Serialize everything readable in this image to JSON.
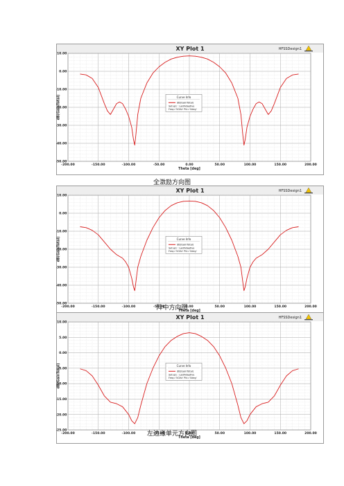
{
  "colors": {
    "curve": "#d81b1b",
    "plot_bg": "#ffffff",
    "frame": "#7f7f7f",
    "grid": "#c9c9c9",
    "header_bg": "#eeeeee"
  },
  "chart_data": [
    {
      "type": "line",
      "title": "XY Plot 1",
      "design_label": "HFSSDesign1",
      "xlabel": "Theta [deg]",
      "ylabel": "dB(GainTotal)",
      "xlim": [
        -200,
        200
      ],
      "ylim": [
        -50,
        10
      ],
      "x_ticks": [
        "-200.00",
        "-150.00",
        "-100.00",
        "-50.00",
        "0.00",
        "50.00",
        "100.00",
        "150.00",
        "200.00"
      ],
      "y_ticks": [
        "10.00",
        "0.00",
        "-10.00",
        "-20.00",
        "-30.00",
        "-40.00",
        "-50.00"
      ],
      "legend": {
        "title": "Curve Info",
        "entry": "dB(GainTotal)",
        "lines": [
          "Setup1 : LastAdaptive",
          "Freq='5GHz' Phi='0deg'"
        ]
      },
      "caption": "全激励方向图",
      "series": [
        {
          "x": [
            -180,
            -170,
            -160,
            -150,
            -140,
            -135,
            -130,
            -125,
            -120,
            -115,
            -110,
            -105,
            -100,
            -95,
            -92,
            -90,
            -88,
            -85,
            -80,
            -70,
            -60,
            -50,
            -40,
            -30,
            -20,
            -10,
            0,
            10,
            20,
            30,
            40,
            50,
            60,
            70,
            80,
            85,
            88,
            90,
            92,
            95,
            100,
            105,
            110,
            115,
            120,
            125,
            130,
            135,
            140,
            150,
            160,
            170,
            180
          ],
          "y": [
            -1.5,
            -2,
            -4,
            -9,
            -18,
            -22,
            -24,
            -21,
            -18,
            -17,
            -18,
            -21,
            -25,
            -31,
            -38,
            -41,
            -35,
            -24,
            -15,
            -6.5,
            -1,
            2.5,
            5,
            6.8,
            7.8,
            8.4,
            8.6,
            8.4,
            7.8,
            6.8,
            5,
            2.5,
            -1,
            -6.5,
            -15,
            -24,
            -35,
            -41,
            -38,
            -31,
            -25,
            -21,
            -18,
            -17,
            -18,
            -21,
            -24,
            -22,
            -18,
            -9,
            -4,
            -2,
            -1.5
          ]
        }
      ]
    },
    {
      "type": "line",
      "title": "XY Plot 1",
      "design_label": "HFSSDesign1",
      "xlabel": "Theta [deg]",
      "ylabel": "dB(GainTotal)",
      "xlim": [
        -200,
        200
      ],
      "ylim": [
        -50,
        10
      ],
      "x_ticks": [
        "-200.00",
        "-150.00",
        "-100.00",
        "-50.00",
        "0.00",
        "50.00",
        "100.00",
        "150.00",
        "200.00"
      ],
      "y_ticks": [
        "10.00",
        "0.00",
        "-10.00",
        "-20.00",
        "-30.00",
        "-40.00",
        "-50.00"
      ],
      "legend": {
        "title": "Curve Info",
        "entry": "dB(GainTotal)",
        "lines": [
          "Setup1 : LastAdaptive",
          "Freq='5GHz' Phi='0deg'"
        ]
      },
      "caption": "阵中方向图",
      "series": [
        {
          "x": [
            -180,
            -170,
            -160,
            -150,
            -140,
            -130,
            -120,
            -110,
            -105,
            -100,
            -95,
            -92,
            -90,
            -88,
            -85,
            -80,
            -70,
            -60,
            -50,
            -40,
            -30,
            -20,
            -10,
            0,
            10,
            20,
            30,
            40,
            50,
            60,
            70,
            80,
            85,
            88,
            90,
            92,
            95,
            100,
            105,
            110,
            120,
            130,
            140,
            150,
            160,
            170,
            180
          ],
          "y": [
            -7.5,
            -8,
            -9.5,
            -12,
            -16,
            -20,
            -23,
            -25,
            -27,
            -30,
            -36,
            -41,
            -43,
            -38,
            -30,
            -24,
            -15,
            -8,
            -2.5,
            1.5,
            4.2,
            5.8,
            6.6,
            6.8,
            6.6,
            5.8,
            4.2,
            1.5,
            -2.5,
            -8,
            -15,
            -24,
            -30,
            -38,
            -43,
            -41,
            -36,
            -30,
            -27,
            -25,
            -23,
            -20,
            -16,
            -12,
            -9.5,
            -8,
            -7.5
          ]
        }
      ]
    },
    {
      "type": "line",
      "title": "XY Plot 1",
      "design_label": "HFSSDesign1",
      "xlabel": "Theta [deg]",
      "ylabel": "dB(GainTotal)",
      "xlim": [
        -200,
        200
      ],
      "ylim": [
        -25,
        10
      ],
      "x_ticks": [
        "-200.00",
        "-150.00",
        "-100.00",
        "-50.00",
        "0.00",
        "50.00",
        "100.00",
        "150.00",
        "200.00"
      ],
      "y_ticks": [
        "10.00",
        "5.00",
        "0.00",
        "-5.00",
        "-10.00",
        "-15.00",
        "-20.00",
        "-25.00"
      ],
      "legend": {
        "title": "Curve Info",
        "entry": "dB(GainTotal)",
        "lines": [
          "Setup1 : LastAdaptive",
          "Freq='5GHz' Phi='0deg'"
        ]
      },
      "caption": "左边缘单元方向图",
      "series": [
        {
          "x": [
            -180,
            -170,
            -160,
            -150,
            -140,
            -130,
            -120,
            -110,
            -100,
            -95,
            -90,
            -85,
            -80,
            -70,
            -60,
            -50,
            -40,
            -30,
            -20,
            -10,
            0,
            10,
            20,
            30,
            40,
            50,
            60,
            70,
            80,
            85,
            90,
            95,
            100,
            110,
            120,
            130,
            140,
            150,
            160,
            170,
            180
          ],
          "y": [
            -5.2,
            -5.8,
            -7.5,
            -10.5,
            -14,
            -16,
            -16.5,
            -17.5,
            -20,
            -22,
            -23,
            -21,
            -17,
            -10,
            -5,
            -1,
            2,
            4,
            5.3,
            6.2,
            6.5,
            6.2,
            5.3,
            4,
            2,
            -1,
            -5,
            -10,
            -17,
            -21,
            -23,
            -22,
            -20,
            -17.5,
            -16.5,
            -16,
            -14,
            -10.5,
            -7.5,
            -5.8,
            -5.2
          ]
        }
      ]
    }
  ]
}
